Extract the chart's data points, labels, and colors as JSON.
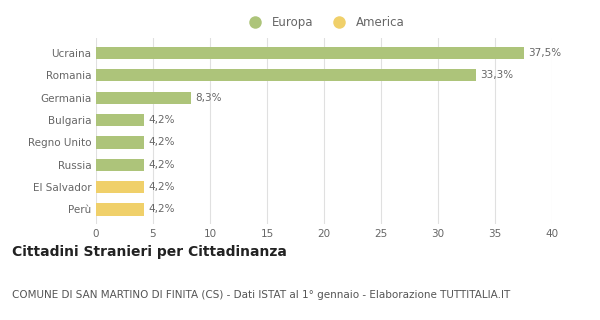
{
  "categories": [
    "Perù",
    "El Salvador",
    "Russia",
    "Regno Unito",
    "Bulgaria",
    "Germania",
    "Romania",
    "Ucraina"
  ],
  "values": [
    4.2,
    4.2,
    4.2,
    4.2,
    4.2,
    8.3,
    33.3,
    37.5
  ],
  "labels": [
    "4,2%",
    "4,2%",
    "4,2%",
    "4,2%",
    "4,2%",
    "8,3%",
    "33,3%",
    "37,5%"
  ],
  "colors": [
    "#f0d06a",
    "#f0d06a",
    "#adc47a",
    "#adc47a",
    "#adc47a",
    "#adc47a",
    "#adc47a",
    "#adc47a"
  ],
  "legend": [
    {
      "label": "Europa",
      "color": "#adc47a"
    },
    {
      "label": "America",
      "color": "#f0d06a"
    }
  ],
  "xlim": [
    0,
    40
  ],
  "xticks": [
    0,
    5,
    10,
    15,
    20,
    25,
    30,
    35,
    40
  ],
  "title": "Cittadini Stranieri per Cittadinanza",
  "subtitle": "COMUNE DI SAN MARTINO DI FINITA (CS) - Dati ISTAT al 1° gennaio - Elaborazione TUTTITALIA.IT",
  "title_fontsize": 10,
  "subtitle_fontsize": 7.5,
  "label_fontsize": 7.5,
  "tick_fontsize": 7.5,
  "legend_fontsize": 8.5,
  "background_color": "#ffffff",
  "grid_color": "#e0e0e0",
  "bar_height": 0.55
}
